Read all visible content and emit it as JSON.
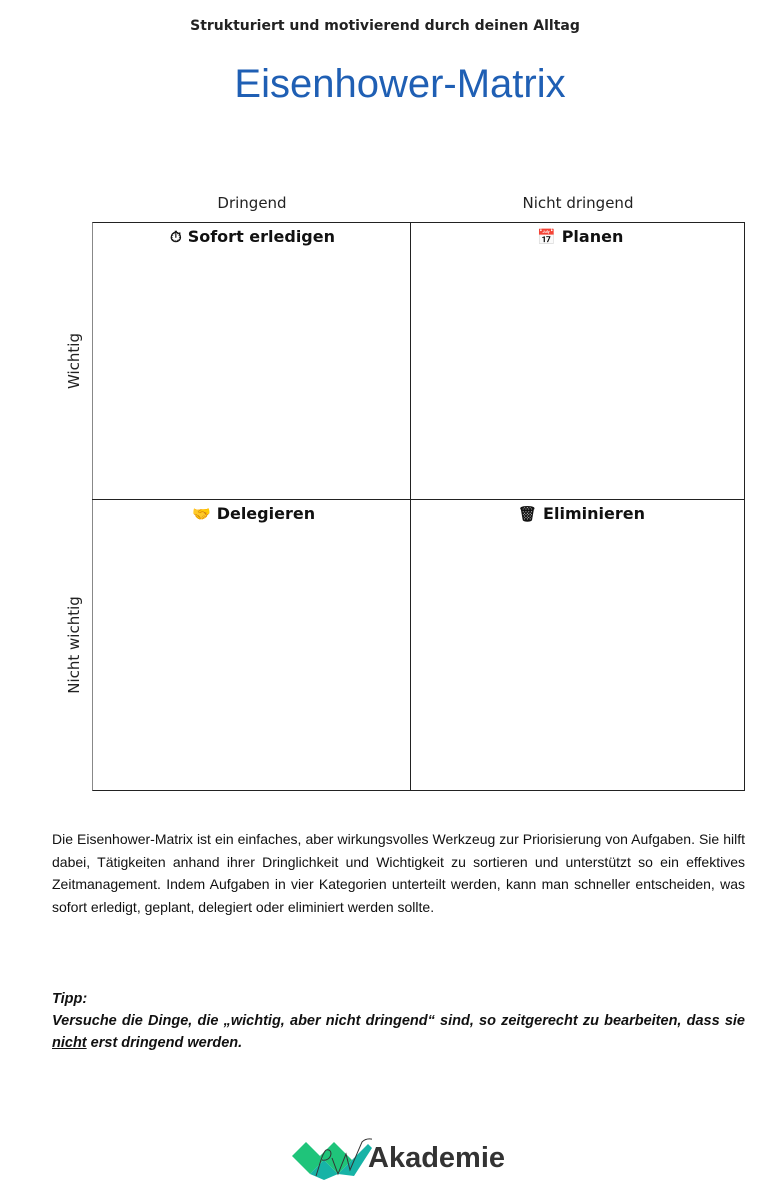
{
  "header": {
    "subtitle": "Strukturiert und motivierend durch deinen Alltag",
    "title": "Eisenhower-Matrix"
  },
  "matrix": {
    "columns": [
      "Dringend",
      "Nicht dringend"
    ],
    "rows": [
      "Wichtig",
      "Nicht wichtig"
    ],
    "quadrants": [
      {
        "label": "Sofort erledigen",
        "icon": "stopwatch-icon",
        "glyph": "⏱"
      },
      {
        "label": "Planen",
        "icon": "calendar-icon",
        "glyph": "📅"
      },
      {
        "label": "Delegieren",
        "icon": "handshake-icon",
        "glyph": "🤝"
      },
      {
        "label": "Eliminieren",
        "icon": "wastebasket-icon",
        "glyph": "🗑"
      }
    ]
  },
  "description": "Die Eisenhower-Matrix ist ein einfaches, aber wirkungsvolles Werkzeug zur Priorisierung von Aufgaben. Sie hilft dabei, Tätigkeiten anhand ihrer Dringlichkeit und Wichtigkeit zu sortieren und unterstützt so ein effektives Zeitmanagement. Indem Aufgaben in vier Kategorien unterteilt werden, kann man schneller entscheiden, was sofort erledigt, geplant, delegiert oder eliminiert werden sollte.",
  "tip": {
    "heading": "Tipp:",
    "text_before": "Versuche die Dinge, die „wichtig, aber nicht dringend“ sind, so zeitgerecht zu bearbeiten, dass sie ",
    "underlined": "nicht",
    "text_after": " erst dringend werden."
  },
  "logo": {
    "text": "Akademie",
    "mark_letters": "RW",
    "colors": {
      "green": "#1fc47a",
      "teal": "#17b3a6"
    }
  }
}
